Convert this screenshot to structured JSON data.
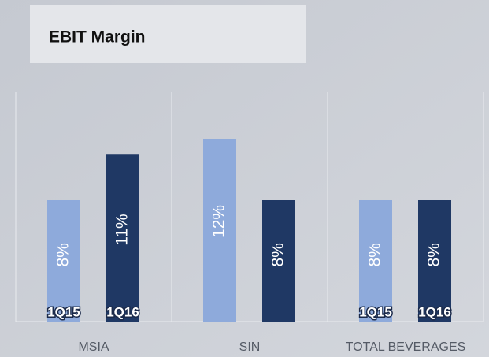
{
  "chart_data": {
    "type": "bar",
    "title": "EBIT Margin",
    "categories": [
      "MSIA",
      "SIN",
      "TOTAL BEVERAGES"
    ],
    "series": [
      {
        "name": "1Q15",
        "color": "#8eaadb",
        "values": [
          8,
          12,
          8
        ],
        "value_labels": [
          "8%",
          "12%",
          "8%"
        ]
      },
      {
        "name": "1Q16",
        "color": "#1f3864",
        "values": [
          11,
          8,
          8
        ],
        "value_labels": [
          "11%",
          "8%",
          "8%"
        ]
      }
    ]
  }
}
